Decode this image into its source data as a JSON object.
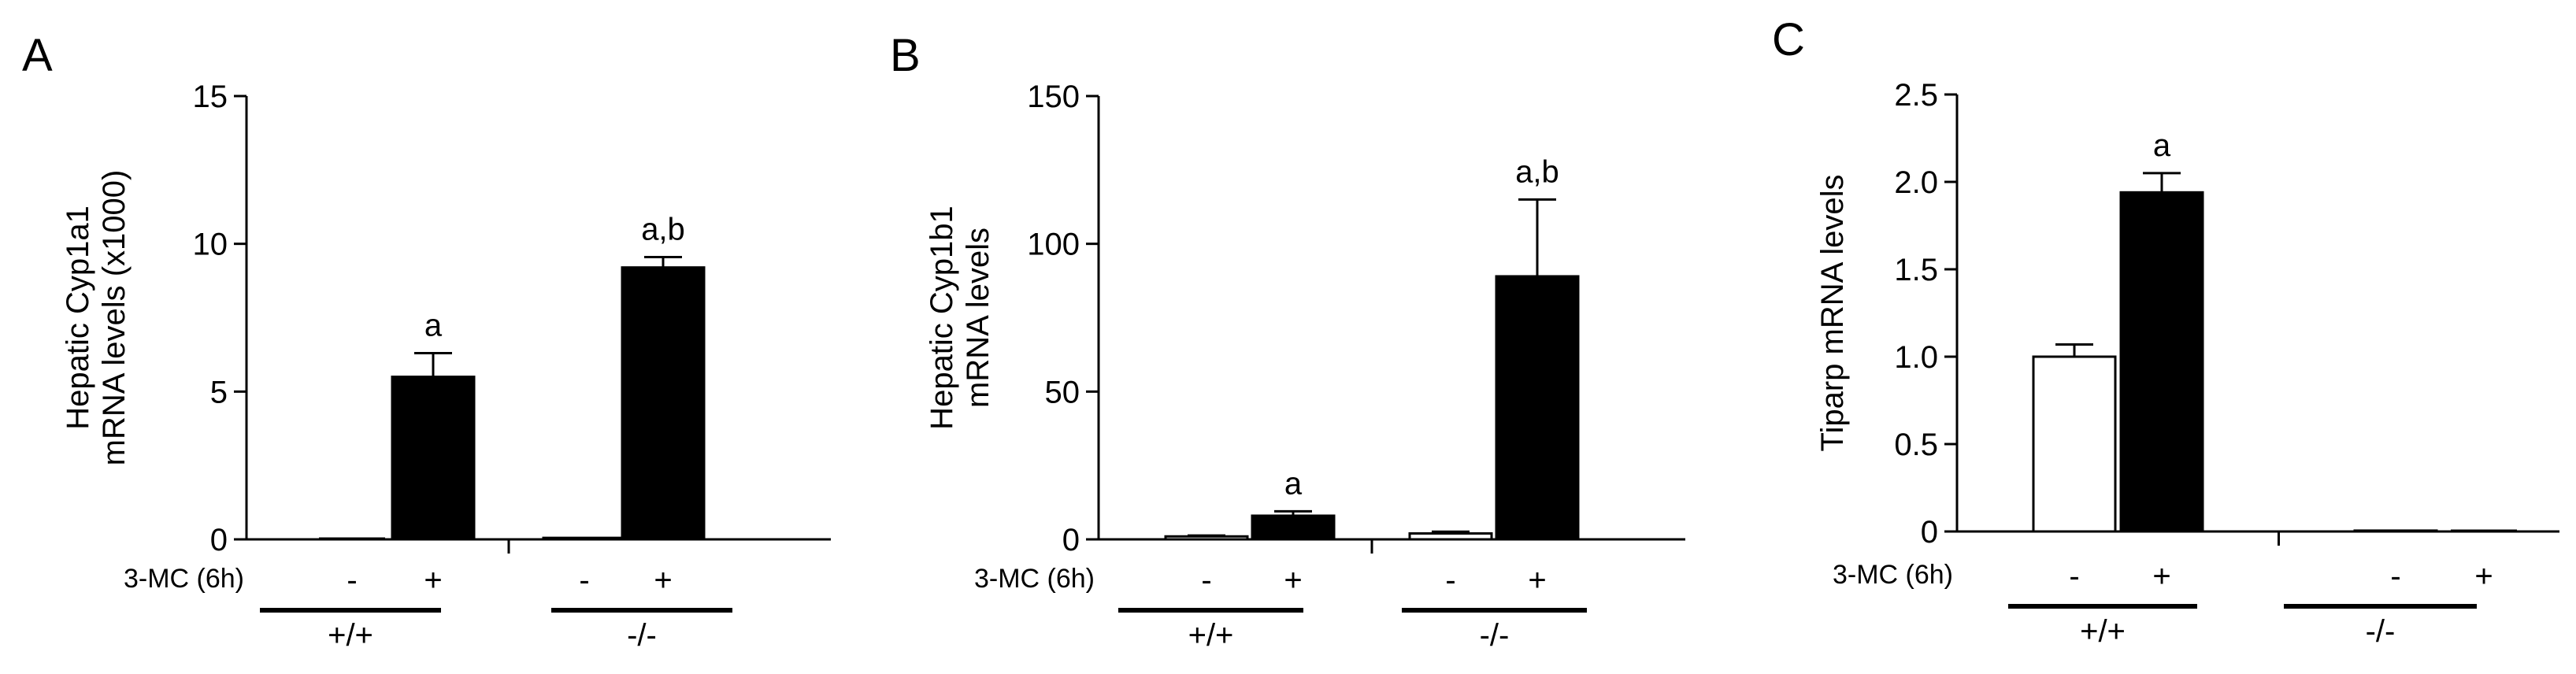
{
  "colors": {
    "control": "#ffffff",
    "treated": "#000000",
    "axis": "#000000"
  },
  "chart_data": [
    {
      "type": "bar",
      "panel_label": "A",
      "ylabel": [
        "Hepatic Cyp1a1",
        "mRNA levels (x1000)"
      ],
      "ylim": [
        0,
        15
      ],
      "yticks": [
        0,
        5,
        10,
        15
      ],
      "ytick_labels": [
        "0",
        "5",
        "10",
        "15"
      ],
      "treatment_label": "3-MC (6h)",
      "categories": [
        "-",
        "+",
        "-",
        "+"
      ],
      "groups": [
        "+/+",
        "-/-"
      ],
      "bar_colors": [
        "control",
        "treated",
        "control",
        "treated"
      ],
      "values": [
        0.0,
        5.5,
        0.05,
        9.2
      ],
      "errors": [
        0.0,
        0.8,
        0.0,
        0.35
      ],
      "annotations": [
        "",
        "a",
        "",
        "a,b"
      ]
    },
    {
      "type": "bar",
      "panel_label": "B",
      "ylabel": [
        "Hepatic Cyp1b1",
        "mRNA levels"
      ],
      "ylim": [
        0,
        150
      ],
      "yticks": [
        0,
        50,
        100,
        150
      ],
      "ytick_labels": [
        "0",
        "50",
        "100",
        "150"
      ],
      "treatment_label": "3-MC (6h)",
      "categories": [
        "-",
        "+",
        "-",
        "+"
      ],
      "groups": [
        "+/+",
        "-/-"
      ],
      "bar_colors": [
        "control",
        "treated",
        "control",
        "treated"
      ],
      "values": [
        1.0,
        8.0,
        2.0,
        89.0
      ],
      "errors": [
        0.3,
        1.5,
        0.6,
        26.0
      ],
      "annotations": [
        "",
        "a",
        "",
        "a,b"
      ]
    },
    {
      "type": "bar",
      "panel_label": "C",
      "ylabel": [
        "Tiparp mRNA levels"
      ],
      "ylim": [
        0,
        2.5
      ],
      "yticks": [
        0,
        0.5,
        1.0,
        1.5,
        2.0,
        2.5
      ],
      "ytick_labels": [
        "0",
        "0.5",
        "1.0",
        "1.5",
        "2.0",
        "2.5"
      ],
      "treatment_label": "3-MC (6h)",
      "categories": [
        "-",
        "+",
        "-",
        "+"
      ],
      "groups": [
        "+/+",
        "-/-"
      ],
      "bar_colors": [
        "control",
        "treated",
        "control",
        "treated"
      ],
      "values": [
        1.0,
        1.94,
        0.005,
        0.0
      ],
      "errors": [
        0.07,
        0.11,
        0.0,
        0.0
      ],
      "annotations": [
        "",
        "a",
        "",
        ""
      ]
    }
  ]
}
